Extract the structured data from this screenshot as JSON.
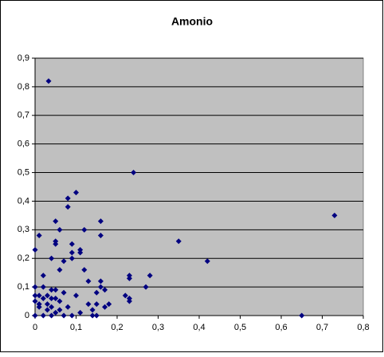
{
  "chart_data": {
    "type": "scatter",
    "title": "Amonio",
    "color": "#000080",
    "plot_background": "#c0c0c0",
    "grid": true,
    "x": [
      0.033,
      0.24,
      0.1,
      0.08,
      0.08,
      0.05,
      0.16,
      0.01,
      0.06,
      0.12,
      0.16,
      0.35,
      0.73,
      0.05,
      0.05,
      0.09,
      0.0,
      0.11,
      0.11,
      0.09,
      0.04,
      0.09,
      0.42,
      0.07,
      0.06,
      0.12,
      0.02,
      0.23,
      0.23,
      0.28,
      0.13,
      0.16,
      0.27,
      0.0,
      0.02,
      0.16,
      0.17,
      0.04,
      0.05,
      0.15,
      0.1,
      0.0,
      0.01,
      0.03,
      0.07,
      0.22,
      0.23,
      0.23,
      0.05,
      0.02,
      0.06,
      0.04,
      0.0,
      0.01,
      0.03,
      0.13,
      0.18,
      0.17,
      0.08,
      0.15,
      0.04,
      0.01,
      0.03,
      0.14,
      0.06,
      0.0,
      0.02,
      0.04,
      0.07,
      0.09,
      0.14,
      0.15,
      0.65,
      0.05,
      0.11
    ],
    "values": [
      0.82,
      0.5,
      0.43,
      0.41,
      0.38,
      0.33,
      0.33,
      0.28,
      0.3,
      0.3,
      0.28,
      0.26,
      0.35,
      0.26,
      0.25,
      0.25,
      0.23,
      0.23,
      0.22,
      0.22,
      0.2,
      0.2,
      0.19,
      0.19,
      0.16,
      0.16,
      0.14,
      0.14,
      0.13,
      0.14,
      0.12,
      0.12,
      0.1,
      0.1,
      0.1,
      0.1,
      0.09,
      0.09,
      0.09,
      0.08,
      0.07,
      0.07,
      0.07,
      0.07,
      0.08,
      0.07,
      0.06,
      0.05,
      0.06,
      0.06,
      0.05,
      0.06,
      0.05,
      0.04,
      0.04,
      0.04,
      0.04,
      0.03,
      0.03,
      0.04,
      0.03,
      0.03,
      0.02,
      0.02,
      0.02,
      0,
      0,
      0,
      0,
      0,
      0,
      0,
      0,
      0.01,
      0.01
    ],
    "xlim": [
      0,
      0.8
    ],
    "xticks": [
      0,
      {
        "value": 0.1,
        "label": "0,1"
      },
      {
        "value": 0.2,
        "label": "0,2"
      },
      {
        "value": 0.3,
        "label": "0,3"
      },
      {
        "value": 0.4,
        "label": "0,4"
      },
      {
        "value": 0.5,
        "label": "0,5"
      },
      {
        "value": 0.6,
        "label": "0,6"
      },
      {
        "value": 0.7,
        "label": "0,7"
      },
      {
        "value": 0.8,
        "label": "0,8"
      }
    ],
    "ylim": [
      0,
      0.9
    ],
    "yticks": [
      0,
      {
        "value": 0.1,
        "label": "0,1"
      },
      {
        "value": 0.2,
        "label": "0,2"
      },
      {
        "value": 0.3,
        "label": "0,3"
      },
      {
        "value": 0.4,
        "label": "0,4"
      },
      {
        "value": 0.5,
        "label": "0,5"
      },
      {
        "value": 0.6,
        "label": "0,6"
      },
      {
        "value": 0.7,
        "label": "0,7"
      },
      {
        "value": 0.8,
        "label": "0,8"
      },
      {
        "value": 0.9,
        "label": "0,9"
      }
    ]
  }
}
